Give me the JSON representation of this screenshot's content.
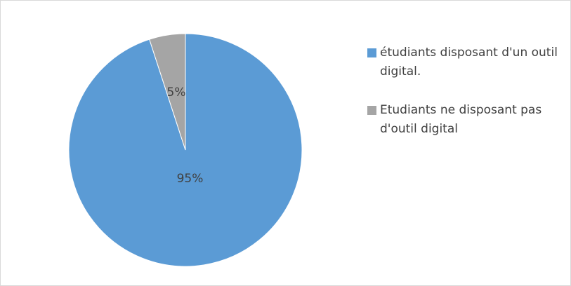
{
  "chart_data": {
    "type": "pie",
    "categories": [
      "étudiants disposant d'un outil digital.",
      "Etudiants ne disposant pas d'outil digital"
    ],
    "values": [
      95,
      5
    ],
    "value_labels": [
      "95%",
      "5%"
    ],
    "colors": [
      "#5b9bd5",
      "#a5a5a5"
    ],
    "legend": "right"
  }
}
